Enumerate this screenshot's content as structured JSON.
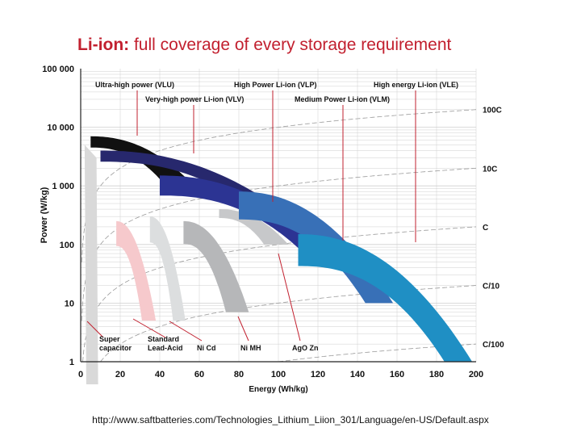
{
  "title_prefix": "Li-ion:",
  "title_rest": " full coverage of every storage requirement",
  "source_url": "http://www.saftbatteries.com/Technologies_Lithium_Liion_301/Language/en-US/Default.aspx",
  "chart_data": {
    "type": "area",
    "xlabel": "Energy (Wh/kg)",
    "ylabel": "Power (W/kg)",
    "x_scale": "linear",
    "y_scale": "log",
    "xlim": [
      0,
      200
    ],
    "ylim": [
      1,
      100000
    ],
    "x_ticks": [
      0,
      20,
      40,
      60,
      80,
      100,
      120,
      140,
      160,
      180,
      200
    ],
    "x_tick_labels": [
      "0",
      "20",
      "40",
      "60",
      "80",
      "100",
      "120",
      "140",
      "160",
      "180",
      "200"
    ],
    "y_ticks": [
      1,
      10,
      100,
      1000,
      10000,
      100000
    ],
    "y_tick_labels": [
      "1",
      "10",
      "100",
      "1 000",
      "10 000",
      "100 000"
    ],
    "rate_lines": [
      {
        "label": "100C",
        "rate": 100
      },
      {
        "label": "10C",
        "rate": 10
      },
      {
        "label": "C",
        "rate": 1
      },
      {
        "label": "C/10",
        "rate": 0.1
      },
      {
        "label": "C/100",
        "rate": 0.01
      }
    ],
    "bands": [
      {
        "name": "Super capacitor",
        "color": "#d9d9d9",
        "energy_range": [
          2,
          8
        ],
        "power_range": [
          1,
          5000
        ]
      },
      {
        "name": "Standard Lead-Acid",
        "color": "#f6c9cc",
        "energy_range": [
          18,
          38
        ],
        "power_range": [
          5,
          250
        ]
      },
      {
        "name": "Ni Cd",
        "color": "#dcdedf",
        "energy_range": [
          35,
          53
        ],
        "power_range": [
          5,
          300
        ]
      },
      {
        "name": "Ni MH",
        "color": "#b6b7b9",
        "energy_range": [
          52,
          85
        ],
        "power_range": [
          7,
          250
        ]
      },
      {
        "name": "AgO Zn",
        "color": "#c7c8ca",
        "energy_range": [
          70,
          105
        ],
        "power_range": [
          100,
          400
        ]
      },
      {
        "name": "Ultra-high power (VLU)",
        "color": "#111111",
        "energy_range": [
          5,
          55
        ],
        "power_range": [
          1200,
          7000
        ]
      },
      {
        "name": "Very-high power Li-ion (VLV)",
        "color": "#27286d",
        "energy_range": [
          10,
          90
        ],
        "power_range": [
          700,
          4000
        ]
      },
      {
        "name": "High Power Li-ion (VLP)",
        "color": "#2c3493",
        "energy_range": [
          40,
          128
        ],
        "power_range": [
          65,
          1500
        ]
      },
      {
        "name": "Medium Power Li-ion (VLM)",
        "color": "#3870b7",
        "energy_range": [
          80,
          158
        ],
        "power_range": [
          10,
          800
        ]
      },
      {
        "name": "High energy Li-ion (VLE)",
        "color": "#1f8fc4",
        "energy_range": [
          110,
          198
        ],
        "power_range": [
          1,
          150
        ]
      }
    ],
    "legend_top": [
      {
        "label": "Ultra-high power (VLU)",
        "points_to": "Ultra-high power (VLU)"
      },
      {
        "label": "High Power Li-ion (VLP)",
        "points_to": "High Power Li-ion (VLP)"
      },
      {
        "label": "High energy Li-ion (VLE)",
        "points_to": "High energy Li-ion (VLE)"
      },
      {
        "label": "Very-high power Li-ion (VLV)",
        "points_to": "Very-high power Li-ion (VLV)"
      },
      {
        "label": "Medium Power Li-ion (VLM)",
        "points_to": "Medium Power Li-ion (VLM)"
      }
    ],
    "legend_bottom": [
      {
        "label": "Super capacitor",
        "points_to": "Super capacitor"
      },
      {
        "label": "Standard Lead-Acid",
        "points_to": "Standard Lead-Acid"
      },
      {
        "label": "Ni Cd",
        "points_to": "Ni Cd"
      },
      {
        "label": "Ni MH",
        "points_to": "Ni MH"
      },
      {
        "label": "AgO Zn",
        "points_to": "AgO Zn"
      }
    ],
    "grid": true,
    "colors": {
      "axis": "#222222",
      "grid": "#cfcfcf",
      "rate_line": "#9a9a9a",
      "leader": "#c2202f"
    }
  }
}
